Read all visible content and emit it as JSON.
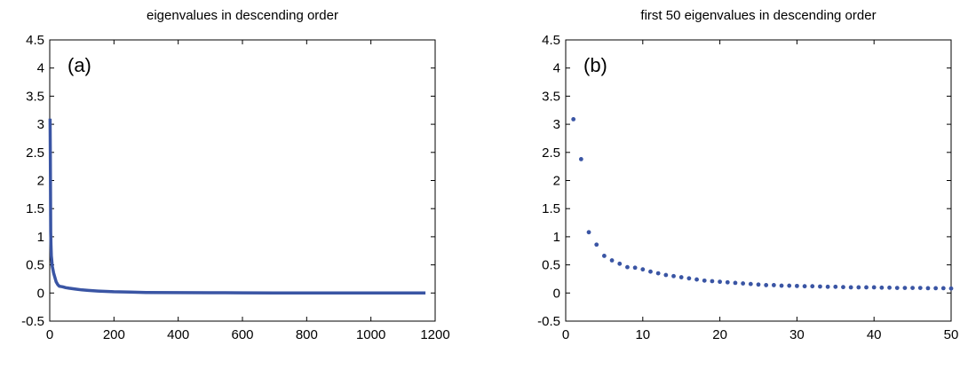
{
  "chart_data": [
    {
      "type": "line",
      "title": "eigenvalues in descending order",
      "panel_label": "(a)",
      "xlabel": "",
      "ylabel": "",
      "xlim": [
        0,
        1200
      ],
      "ylim": [
        -0.5,
        4.5
      ],
      "xticks": [
        0,
        200,
        400,
        600,
        800,
        1000,
        1200
      ],
      "xtick_labels": [
        "0",
        "200",
        "400",
        "600",
        "800",
        "1000",
        "1200"
      ],
      "yticks": [
        -0.5,
        0,
        0.5,
        1,
        1.5,
        2,
        2.5,
        3,
        3.5,
        4,
        4.5
      ],
      "ytick_labels": [
        "-0.5",
        "0",
        "0.5",
        "1",
        "1.5",
        "2",
        "2.5",
        "3",
        "3.5",
        "4",
        "4.5"
      ],
      "grid": false,
      "color": "#3a55a4",
      "series": [
        {
          "x": [
            1,
            2,
            3,
            4,
            5,
            6,
            8,
            10,
            12,
            15,
            20,
            25,
            30,
            40,
            50,
            60,
            80,
            100,
            120,
            150,
            200,
            250,
            300,
            400,
            500,
            600,
            700,
            800,
            900,
            1000,
            1100,
            1170
          ],
          "y": [
            3.1,
            2.38,
            1.08,
            0.86,
            0.66,
            0.6,
            0.47,
            0.42,
            0.36,
            0.3,
            0.2,
            0.15,
            0.12,
            0.11,
            0.095,
            0.085,
            0.07,
            0.055,
            0.045,
            0.035,
            0.022,
            0.015,
            0.01,
            0.006,
            0.004,
            0.003,
            0.002,
            0.0015,
            0.001,
            0.001,
            0.0008,
            0.0005
          ]
        }
      ]
    },
    {
      "type": "scatter",
      "title": "first 50 eigenvalues in descending order",
      "panel_label": "(b)",
      "xlabel": "",
      "ylabel": "",
      "xlim": [
        0,
        50
      ],
      "ylim": [
        -0.5,
        4.5
      ],
      "xticks": [
        0,
        10,
        20,
        30,
        40,
        50
      ],
      "xtick_labels": [
        "0",
        "10",
        "20",
        "30",
        "40",
        "50"
      ],
      "yticks": [
        -0.5,
        0,
        0.5,
        1,
        1.5,
        2,
        2.5,
        3,
        3.5,
        4,
        4.5
      ],
      "ytick_labels": [
        "-0.5",
        "0",
        "0.5",
        "1",
        "1.5",
        "2",
        "2.5",
        "3",
        "3.5",
        "4",
        "4.5"
      ],
      "grid": false,
      "color": "#3a55a4",
      "series": [
        {
          "x": [
            1,
            2,
            3,
            4,
            5,
            6,
            7,
            8,
            9,
            10,
            11,
            12,
            13,
            14,
            15,
            16,
            17,
            18,
            19,
            20,
            21,
            22,
            23,
            24,
            25,
            26,
            27,
            28,
            29,
            30,
            31,
            32,
            33,
            34,
            35,
            36,
            37,
            38,
            39,
            40,
            41,
            42,
            43,
            44,
            45,
            46,
            47,
            48,
            49,
            50
          ],
          "y": [
            3.09,
            2.38,
            1.08,
            0.86,
            0.66,
            0.58,
            0.52,
            0.46,
            0.45,
            0.42,
            0.38,
            0.35,
            0.32,
            0.3,
            0.28,
            0.26,
            0.24,
            0.22,
            0.21,
            0.2,
            0.19,
            0.18,
            0.17,
            0.16,
            0.15,
            0.14,
            0.14,
            0.13,
            0.13,
            0.125,
            0.12,
            0.12,
            0.115,
            0.11,
            0.11,
            0.105,
            0.1,
            0.1,
            0.1,
            0.1,
            0.095,
            0.095,
            0.09,
            0.09,
            0.09,
            0.09,
            0.085,
            0.085,
            0.085,
            0.08
          ]
        }
      ]
    }
  ]
}
